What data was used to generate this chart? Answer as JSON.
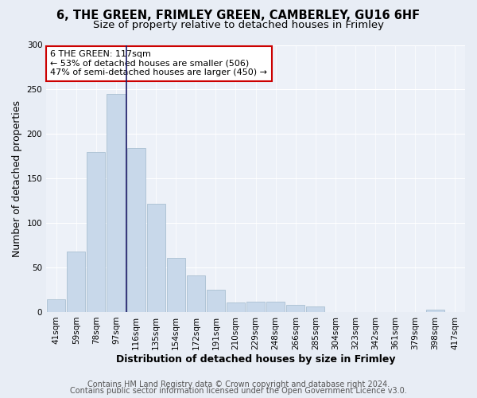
{
  "title1": "6, THE GREEN, FRIMLEY GREEN, CAMBERLEY, GU16 6HF",
  "title2": "Size of property relative to detached houses in Frimley",
  "xlabel": "Distribution of detached houses by size in Frimley",
  "ylabel": "Number of detached properties",
  "categories": [
    "41sqm",
    "59sqm",
    "78sqm",
    "97sqm",
    "116sqm",
    "135sqm",
    "154sqm",
    "172sqm",
    "191sqm",
    "210sqm",
    "229sqm",
    "248sqm",
    "266sqm",
    "285sqm",
    "304sqm",
    "323sqm",
    "342sqm",
    "361sqm",
    "379sqm",
    "398sqm",
    "417sqm"
  ],
  "values": [
    14,
    68,
    180,
    245,
    184,
    122,
    61,
    41,
    25,
    11,
    12,
    12,
    8,
    6,
    0,
    0,
    0,
    0,
    0,
    3,
    0
  ],
  "bar_color": "#c8d8ea",
  "bar_edge_color": "#a0b8cc",
  "highlight_bar_index": 3,
  "highlight_line_color": "#1a1a66",
  "annotation_text": "6 THE GREEN: 117sqm\n← 53% of detached houses are smaller (506)\n47% of semi-detached houses are larger (450) →",
  "annotation_box_color": "#ffffff",
  "annotation_box_edge": "#cc0000",
  "ylim": [
    0,
    300
  ],
  "yticks": [
    0,
    50,
    100,
    150,
    200,
    250,
    300
  ],
  "footer_line1": "Contains HM Land Registry data © Crown copyright and database right 2024.",
  "footer_line2": "Contains public sector information licensed under the Open Government Licence v3.0.",
  "bg_color": "#e8edf5",
  "plot_bg_color": "#edf1f8",
  "grid_color": "#ffffff",
  "title_fontsize": 10.5,
  "subtitle_fontsize": 9.5,
  "axis_label_fontsize": 9,
  "tick_fontsize": 7.5,
  "footer_fontsize": 7
}
